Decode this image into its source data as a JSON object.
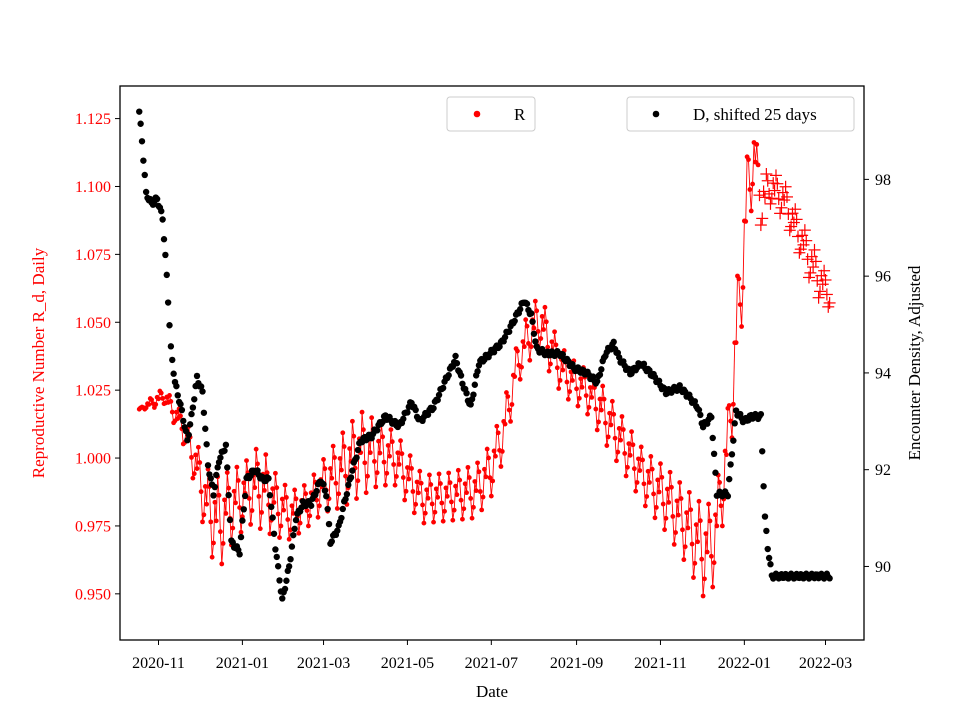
{
  "chart_data": {
    "type": "scatter",
    "xlabel": "Date",
    "ylabel_left": "Reproductive Number R_d, Daily",
    "ylabel_right": "Encounter Density, Adjusted",
    "x_range": [
      "2020-10-04",
      "2022-03-29"
    ],
    "ylim_left": [
      0.933,
      1.137
    ],
    "ylim_right": [
      88.48,
      99.93
    ],
    "x_ticks": [
      "2020-11-01",
      "2021-01-01",
      "2021-03-01",
      "2021-05-01",
      "2021-07-01",
      "2021-09-01",
      "2021-11-01",
      "2022-01-01",
      "2022-03-01"
    ],
    "x_tick_labels": [
      "2020-11",
      "2021-01",
      "2021-03",
      "2021-05",
      "2021-07",
      "2021-09",
      "2021-11",
      "2022-01",
      "2022-03"
    ],
    "y_ticks_left": [
      0.95,
      0.975,
      1.0,
      1.025,
      1.05,
      1.075,
      1.1,
      1.125
    ],
    "y_tick_labels_left": [
      "0.950",
      "0.975",
      "1.000",
      "1.025",
      "1.050",
      "1.075",
      "1.100",
      "1.125"
    ],
    "y_ticks_right": [
      90,
      92,
      94,
      96,
      98
    ],
    "y_tick_labels_right": [
      "90",
      "92",
      "94",
      "96",
      "98"
    ],
    "legend": {
      "r_label": "R",
      "d_label": "D, shifted 25 days",
      "r_placement": "top-center",
      "d_placement": "top-right"
    },
    "grid": false,
    "colors": {
      "R": "#ff0000",
      "D": "#000000",
      "axis_left_text": "#ff0000",
      "axis_right_text": "#000000"
    },
    "series": [
      {
        "name": "R",
        "axis": "left",
        "color": "#ff0000",
        "marker": "dot-with-weekly-oscillation-and-plus",
        "note_start": "2020-10-18",
        "knots": [
          [
            "2020-10-18",
            1.018,
            0.0
          ],
          [
            "2020-10-26",
            1.02,
            0.002
          ],
          [
            "2020-11-05",
            1.023,
            0.003
          ],
          [
            "2020-11-18",
            1.012,
            0.005
          ],
          [
            "2020-11-28",
            0.998,
            0.009
          ],
          [
            "2020-12-06",
            0.983,
            0.014
          ],
          [
            "2020-12-14",
            0.976,
            0.018
          ],
          [
            "2020-12-24",
            0.982,
            0.014
          ],
          [
            "2021-01-05",
            0.988,
            0.012
          ],
          [
            "2021-01-14",
            0.99,
            0.016
          ],
          [
            "2021-01-25",
            0.983,
            0.012
          ],
          [
            "2021-02-05",
            0.979,
            0.009
          ],
          [
            "2021-02-18",
            0.983,
            0.008
          ],
          [
            "2021-03-01",
            0.99,
            0.01
          ],
          [
            "2021-03-15",
            0.996,
            0.014
          ],
          [
            "2021-03-28",
            1.002,
            0.016
          ],
          [
            "2021-04-10",
            1.002,
            0.012
          ],
          [
            "2021-04-22",
            1.0,
            0.01
          ],
          [
            "2021-05-01",
            0.993,
            0.01
          ],
          [
            "2021-05-12",
            0.985,
            0.009
          ],
          [
            "2021-06-01",
            0.986,
            0.009
          ],
          [
            "2021-06-20",
            0.988,
            0.01
          ],
          [
            "2021-07-01",
            0.996,
            0.01
          ],
          [
            "2021-07-10",
            1.01,
            0.01
          ],
          [
            "2021-07-20",
            1.035,
            0.008
          ],
          [
            "2021-07-30",
            1.047,
            0.01
          ],
          [
            "2021-08-06",
            1.05,
            0.01
          ],
          [
            "2021-08-15",
            1.038,
            0.01
          ],
          [
            "2021-08-25",
            1.03,
            0.008
          ],
          [
            "2021-09-08",
            1.025,
            0.008
          ],
          [
            "2021-09-20",
            1.017,
            0.01
          ],
          [
            "2021-10-05",
            1.005,
            0.01
          ],
          [
            "2021-10-20",
            0.993,
            0.01
          ],
          [
            "2021-11-05",
            0.985,
            0.012
          ],
          [
            "2021-11-20",
            0.975,
            0.014
          ],
          [
            "2021-12-01",
            0.967,
            0.017
          ],
          [
            "2021-12-06",
            0.965,
            0.019
          ],
          [
            "2021-12-12",
            0.975,
            0.016
          ],
          [
            "2021-12-20",
            1.005,
            0.014
          ],
          [
            "2021-12-28",
            1.055,
            0.02
          ],
          [
            "2022-01-04",
            1.1,
            0.018
          ],
          [
            "2022-01-08",
            1.112,
            0.012
          ],
          [
            "2022-01-14",
            1.094,
            0.006
          ],
          [
            "2022-01-20",
            1.1,
            0.004
          ],
          [
            "2022-01-30",
            1.095,
            0.004
          ],
          [
            "2022-02-10",
            1.082,
            0.004
          ],
          [
            "2022-02-22",
            1.068,
            0.005
          ],
          [
            "2022-03-04",
            1.06,
            0.003
          ]
        ]
      },
      {
        "name": "D, shifted 25 days",
        "axis": "right",
        "color": "#000000",
        "marker": "dot",
        "knots": [
          [
            "2020-10-18",
            99.4
          ],
          [
            "2020-10-20",
            98.8
          ],
          [
            "2020-10-23",
            97.7
          ],
          [
            "2020-10-27",
            97.5
          ],
          [
            "2020-10-31",
            97.6
          ],
          [
            "2020-11-04",
            97.2
          ],
          [
            "2020-11-07",
            96.0
          ],
          [
            "2020-11-10",
            94.5
          ],
          [
            "2020-11-13",
            93.8
          ],
          [
            "2020-11-18",
            93.2
          ],
          [
            "2020-11-22",
            92.6
          ],
          [
            "2020-11-25",
            93.1
          ],
          [
            "2020-11-29",
            93.9
          ],
          [
            "2020-12-03",
            93.6
          ],
          [
            "2020-12-07",
            92.1
          ],
          [
            "2020-12-11",
            91.5
          ],
          [
            "2020-12-15",
            92.2
          ],
          [
            "2020-12-20",
            92.5
          ],
          [
            "2020-12-24",
            90.5
          ],
          [
            "2020-12-30",
            90.3
          ],
          [
            "2021-01-04",
            91.8
          ],
          [
            "2021-01-10",
            92.0
          ],
          [
            "2021-01-16",
            91.8
          ],
          [
            "2021-01-20",
            91.8
          ],
          [
            "2021-01-25",
            90.4
          ],
          [
            "2021-01-30",
            89.3
          ],
          [
            "2021-02-04",
            90.0
          ],
          [
            "2021-02-09",
            91.0
          ],
          [
            "2021-02-14",
            91.3
          ],
          [
            "2021-02-20",
            91.3
          ],
          [
            "2021-02-27",
            91.8
          ],
          [
            "2021-03-03",
            91.5
          ],
          [
            "2021-03-06",
            90.5
          ],
          [
            "2021-03-12",
            90.8
          ],
          [
            "2021-03-16",
            91.3
          ],
          [
            "2021-03-22",
            92.0
          ],
          [
            "2021-03-28",
            92.6
          ],
          [
            "2021-04-05",
            92.7
          ],
          [
            "2021-04-15",
            93.1
          ],
          [
            "2021-04-25",
            92.9
          ],
          [
            "2021-05-04",
            93.4
          ],
          [
            "2021-05-10",
            93.0
          ],
          [
            "2021-05-20",
            93.3
          ],
          [
            "2021-05-28",
            93.8
          ],
          [
            "2021-06-05",
            94.3
          ],
          [
            "2021-06-10",
            93.8
          ],
          [
            "2021-06-16",
            93.3
          ],
          [
            "2021-06-22",
            94.2
          ],
          [
            "2021-06-30",
            94.4
          ],
          [
            "2021-07-08",
            94.6
          ],
          [
            "2021-07-16",
            95.0
          ],
          [
            "2021-07-25",
            95.5
          ],
          [
            "2021-07-30",
            95.2
          ],
          [
            "2021-08-03",
            94.5
          ],
          [
            "2021-08-10",
            94.4
          ],
          [
            "2021-08-20",
            94.4
          ],
          [
            "2021-08-30",
            94.1
          ],
          [
            "2021-09-08",
            94.0
          ],
          [
            "2021-09-16",
            93.8
          ],
          [
            "2021-09-22",
            94.4
          ],
          [
            "2021-09-28",
            94.6
          ],
          [
            "2021-10-02",
            94.3
          ],
          [
            "2021-10-10",
            94.0
          ],
          [
            "2021-10-18",
            94.2
          ],
          [
            "2021-10-28",
            93.9
          ],
          [
            "2021-11-05",
            93.6
          ],
          [
            "2021-11-15",
            93.7
          ],
          [
            "2021-11-22",
            93.5
          ],
          [
            "2021-11-28",
            93.3
          ],
          [
            "2021-12-02",
            92.9
          ],
          [
            "2021-12-08",
            93.1
          ],
          [
            "2021-12-12",
            91.5
          ],
          [
            "2021-12-20",
            91.5
          ],
          [
            "2021-12-26",
            93.2
          ],
          [
            "2022-01-01",
            93.0
          ],
          [
            "2022-01-06",
            93.1
          ],
          [
            "2022-01-13",
            93.1
          ],
          [
            "2022-01-16",
            91.0
          ],
          [
            "2022-01-18",
            90.4
          ],
          [
            "2022-01-21",
            89.8
          ],
          [
            "2022-03-04",
            89.8
          ]
        ]
      }
    ]
  }
}
